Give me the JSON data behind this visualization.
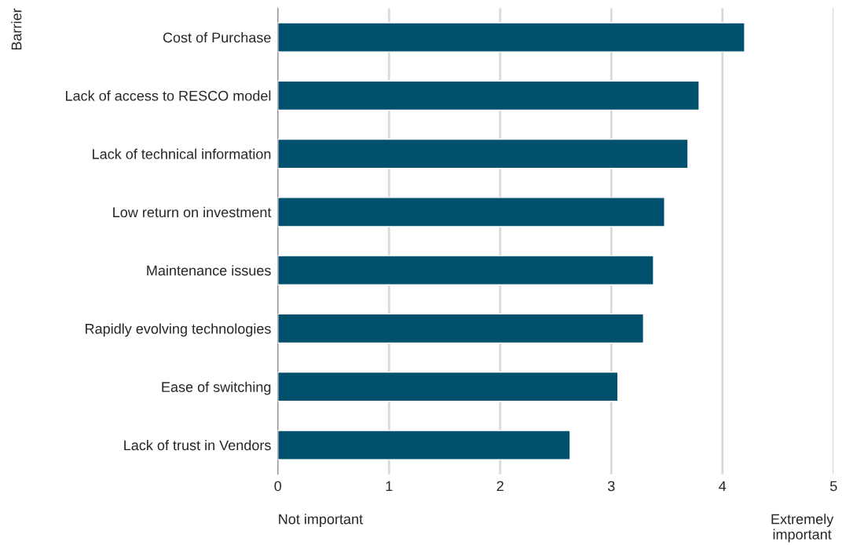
{
  "chart_data": {
    "type": "bar",
    "orientation": "horizontal",
    "ylabel": "Barrier",
    "categories": [
      "Cost of Purchase",
      "Lack of access to RESCO model",
      "Lack of technical information",
      "Low return on investment",
      "Maintenance issues",
      "Rapidly evolving technologies",
      "Ease of switching",
      "Lack of trust in Vendors"
    ],
    "values": [
      4.2,
      3.79,
      3.69,
      3.48,
      3.38,
      3.29,
      3.06,
      2.63
    ],
    "color": "#00506e",
    "xlim": [
      0,
      5
    ],
    "xticks": [
      0,
      1,
      2,
      3,
      4,
      5
    ],
    "grid": "x",
    "annotations": [
      "Not important",
      "Extremely\nimportant"
    ]
  }
}
